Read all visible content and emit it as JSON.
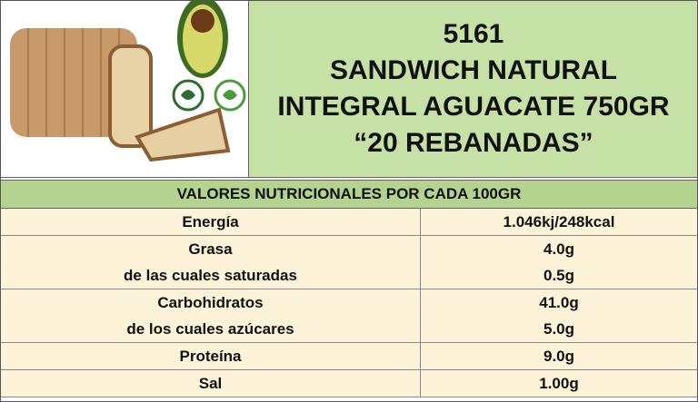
{
  "header": {
    "lines": [
      "5161",
      "SANDWICH NATURAL",
      "INTEGRAL AGUACATE 750GR",
      "“20 REBANADAS”"
    ]
  },
  "table": {
    "title": "VALORES NUTRICIONALES POR CADA 100GR",
    "rows": [
      {
        "label": [
          "Energía"
        ],
        "value": [
          "1.046kj/248kcal"
        ]
      },
      {
        "label": [
          "Grasa",
          "de las cuales saturadas"
        ],
        "value": [
          "4.0g",
          "0.5g"
        ]
      },
      {
        "label": [
          "Carbohidratos",
          "de los cuales azúcares"
        ],
        "value": [
          "41.0g",
          "5.0g"
        ]
      },
      {
        "label": [
          "Proteína"
        ],
        "value": [
          "9.0g"
        ]
      },
      {
        "label": [
          "Sal"
        ],
        "value": [
          "1.00g"
        ]
      }
    ]
  }
}
